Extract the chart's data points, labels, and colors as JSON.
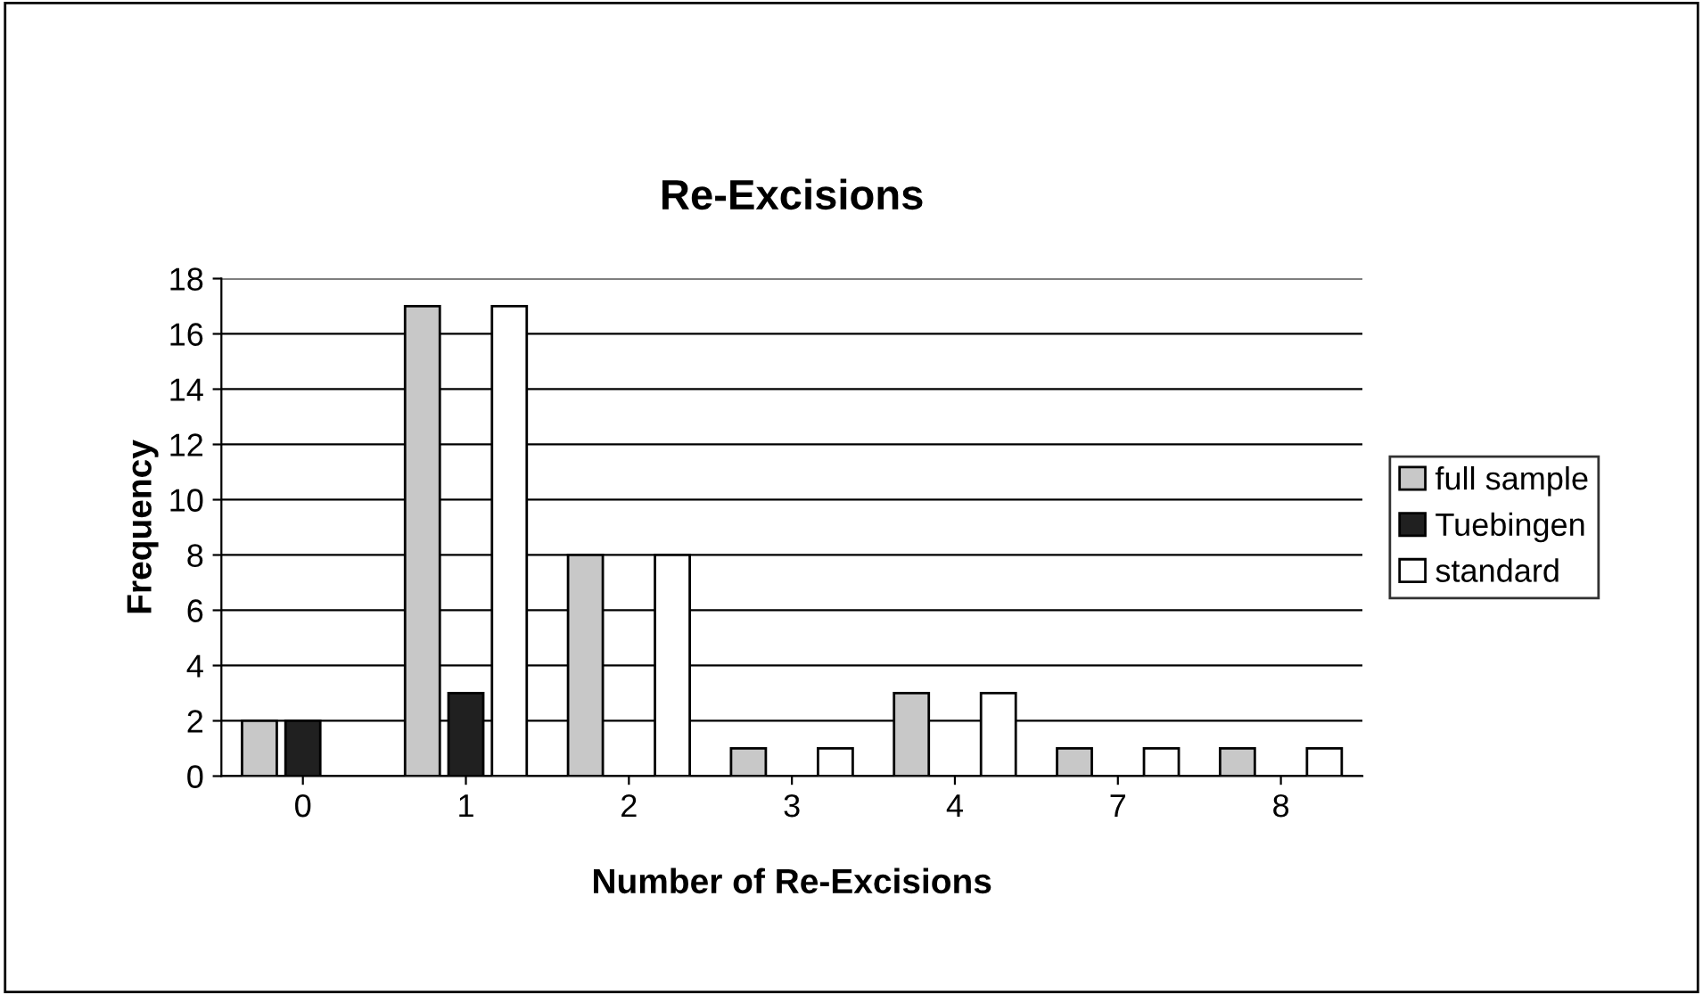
{
  "chart_data": {
    "type": "bar",
    "title": "Re-Excisions",
    "xlabel": "Number of Re-Excisions",
    "ylabel": "Frequency",
    "categories": [
      "0",
      "1",
      "2",
      "3",
      "4",
      "7",
      "8"
    ],
    "series": [
      {
        "name": "full sample",
        "color": "#c8c8c8",
        "values": [
          2,
          17,
          8,
          1,
          3,
          1,
          1
        ]
      },
      {
        "name": "Tuebingen",
        "color": "#202020",
        "values": [
          2,
          3,
          null,
          null,
          null,
          null,
          null
        ]
      },
      {
        "name": "standard",
        "color": "#ffffff",
        "values": [
          null,
          17,
          8,
          1,
          3,
          1,
          1
        ]
      }
    ],
    "ylim": [
      0,
      18
    ],
    "yticks": [
      0,
      2,
      4,
      6,
      8,
      10,
      12,
      14,
      16,
      18
    ],
    "grid": "y",
    "legend": "right"
  }
}
